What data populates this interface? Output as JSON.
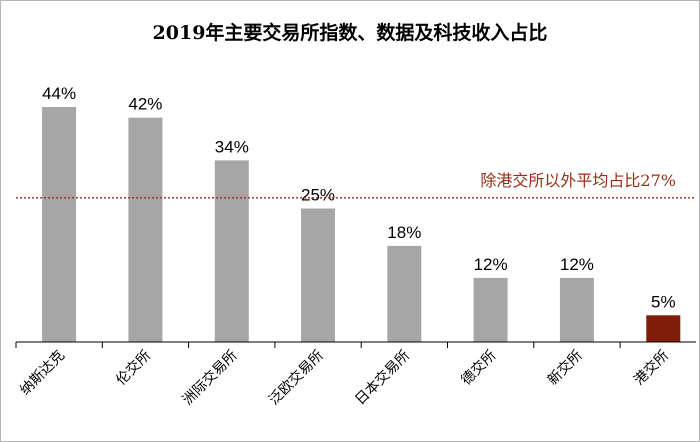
{
  "title": "2019年主要交易所指数、数据及科技收入占比",
  "chart_data": {
    "type": "bar",
    "title": "2019年主要交易所指数、数据及科技收入占比",
    "categories": [
      "纳斯达克",
      "伦交所",
      "洲际交易所",
      "泛欧交易所",
      "日本交易所",
      "德交所",
      "新交所",
      "港交所"
    ],
    "values": [
      44,
      42,
      34,
      25,
      18,
      12,
      12,
      5
    ],
    "value_labels": [
      "44%",
      "42%",
      "34%",
      "25%",
      "18%",
      "12%",
      "12%",
      "5%"
    ],
    "unit": "%",
    "ylim": [
      0,
      50
    ],
    "grid": false,
    "legend": "none",
    "bar_color": "#a6a6a6",
    "highlight_index": 7,
    "highlight_color": "#7f1d0a",
    "reference_line": {
      "value": 27,
      "label": "除港交所以外平均占比27%",
      "color": "#9a2e14"
    }
  }
}
